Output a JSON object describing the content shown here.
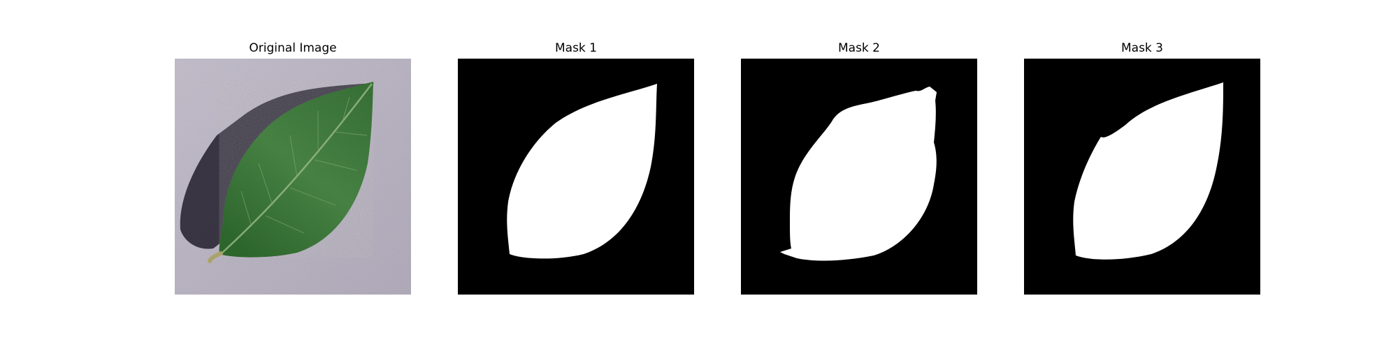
{
  "figure": {
    "panels": [
      {
        "title": "Original Image",
        "kind": "photo",
        "icon": "leaf-photo"
      },
      {
        "title": "Mask 1",
        "kind": "mask",
        "icon": "leaf-mask"
      },
      {
        "title": "Mask 2",
        "kind": "mask",
        "icon": "leaf-mask"
      },
      {
        "title": "Mask 3",
        "kind": "mask",
        "icon": "leaf-mask"
      }
    ],
    "colors": {
      "background": "#ffffff",
      "mask_background": "#000000",
      "mask_foreground": "#ffffff",
      "leaf": "#3f7a3a",
      "leaf_dark": "#2b5a29",
      "surface": "#b9b3c2",
      "shadow": "#2e2a38"
    }
  }
}
